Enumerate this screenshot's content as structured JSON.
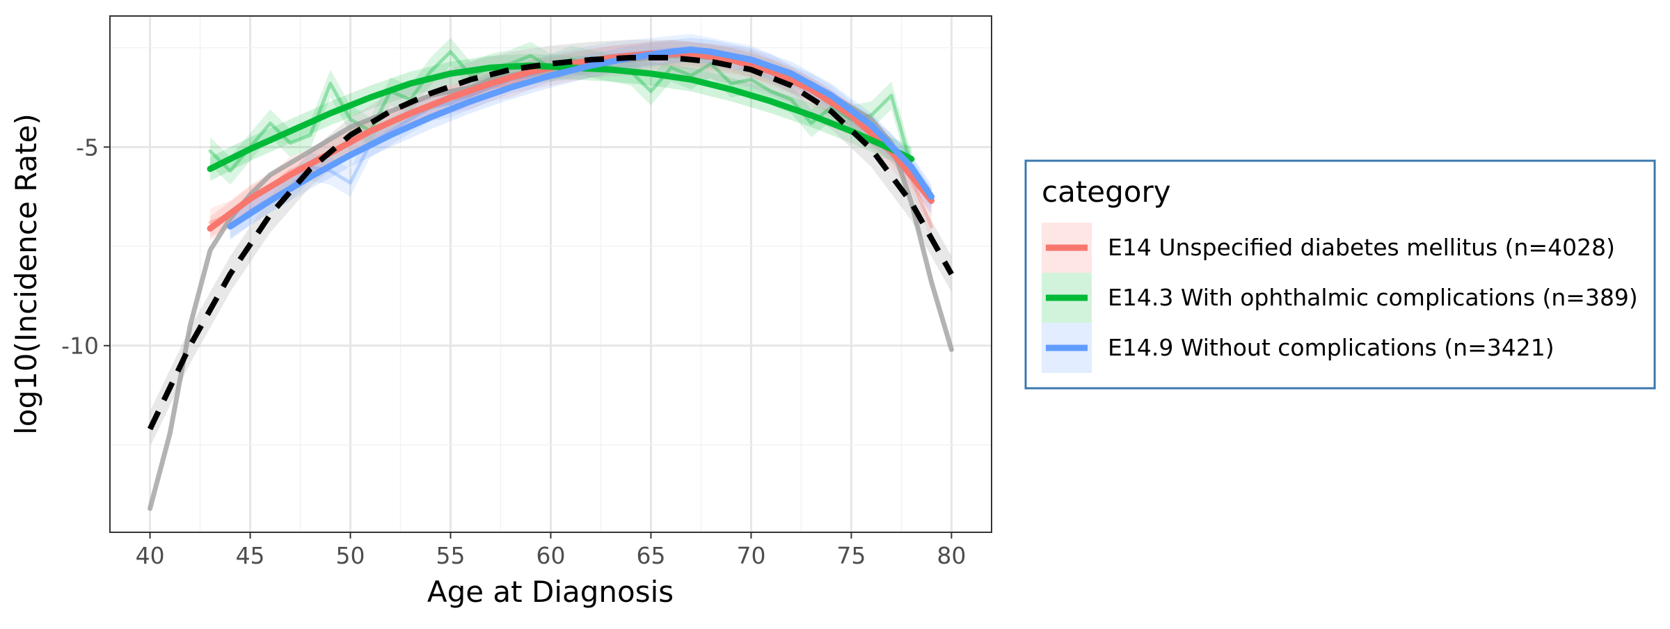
{
  "chart_data": {
    "type": "line",
    "title": "",
    "xlabel": "Age at Diagnosis",
    "ylabel": "log10(Incidence Rate)",
    "xlim": [
      38,
      82
    ],
    "ylim": [
      -14.7,
      -1.7
    ],
    "x_ticks": [
      40,
      45,
      50,
      55,
      60,
      65,
      70,
      75,
      80
    ],
    "y_ticks": [
      -5,
      -10
    ],
    "grid": true,
    "legend": {
      "title": "category",
      "position": "right",
      "entries": [
        {
          "label": "E14 Unspecified diabetes mellitus (n=4028)",
          "color": "#F8766D"
        },
        {
          "label": "E14.3 With ophthalmic complications (n=389)",
          "color": "#00BA38"
        },
        {
          "label": "E14.9 Without complications (n=3421)",
          "color": "#619CFF"
        }
      ]
    },
    "series": [
      {
        "name": "E14 Unspecified diabetes mellitus (n=4028)",
        "role": "observed",
        "color": "#F8766D",
        "x": [
          43,
          44,
          45,
          46,
          47,
          48,
          49,
          50,
          51,
          52,
          53,
          54,
          55,
          56,
          57,
          58,
          59,
          60,
          61,
          62,
          63,
          64,
          65,
          66,
          67,
          68,
          69,
          70,
          71,
          72,
          73,
          74,
          75,
          76,
          77,
          78,
          79
        ],
        "y": [
          -6.9,
          -6.7,
          -6.3,
          -6.0,
          -5.6,
          -5.4,
          -5.1,
          -4.9,
          -4.6,
          -4.4,
          -4.2,
          -4.0,
          -3.8,
          -3.7,
          -3.5,
          -3.4,
          -3.2,
          -3.1,
          -3.0,
          -2.9,
          -2.8,
          -2.75,
          -2.7,
          -2.65,
          -2.7,
          -2.75,
          -2.8,
          -2.9,
          -3.1,
          -3.3,
          -3.6,
          -3.9,
          -4.3,
          -4.7,
          -5.2,
          -5.8,
          -7.0
        ]
      },
      {
        "name": "E14 Unspecified diabetes mellitus (n=4028)",
        "role": "fitted",
        "color": "#F8766D",
        "x": [
          43,
          45,
          47,
          49,
          51,
          53,
          55,
          57,
          59,
          61,
          63,
          65,
          67,
          69,
          71,
          73,
          75,
          77,
          79
        ],
        "y": [
          -7.05,
          -6.3,
          -5.7,
          -5.15,
          -4.6,
          -4.15,
          -3.75,
          -3.4,
          -3.1,
          -2.9,
          -2.75,
          -2.65,
          -2.65,
          -2.8,
          -3.1,
          -3.55,
          -4.2,
          -5.1,
          -6.35
        ]
      },
      {
        "name": "E14.3 With ophthalmic complications (n=389)",
        "role": "observed",
        "color": "#00BA38",
        "x": [
          43,
          44,
          45,
          46,
          47,
          48,
          49,
          50,
          51,
          52,
          53,
          54,
          55,
          56,
          57,
          58,
          59,
          60,
          61,
          62,
          63,
          64,
          65,
          66,
          67,
          68,
          69,
          70,
          71,
          72,
          73,
          74,
          75,
          76,
          77,
          78
        ],
        "y": [
          -5.1,
          -5.6,
          -5.0,
          -4.4,
          -4.9,
          -4.7,
          -3.4,
          -4.3,
          -4.6,
          -3.6,
          -3.8,
          -3.1,
          -2.6,
          -3.2,
          -3.0,
          -2.9,
          -2.7,
          -3.0,
          -2.8,
          -2.9,
          -3.0,
          -3.1,
          -3.6,
          -3.0,
          -3.2,
          -2.9,
          -3.4,
          -3.3,
          -3.6,
          -3.8,
          -4.4,
          -4.0,
          -4.3,
          -4.2,
          -3.7,
          -5.5
        ]
      },
      {
        "name": "E14.3 With ophthalmic complications (n=389)",
        "role": "fitted",
        "color": "#00BA38",
        "x": [
          43,
          45,
          47,
          49,
          51,
          53,
          55,
          57,
          59,
          61,
          63,
          65,
          67,
          69,
          71,
          73,
          75,
          77,
          78
        ],
        "y": [
          -5.55,
          -5.05,
          -4.6,
          -4.15,
          -3.75,
          -3.4,
          -3.15,
          -3.0,
          -2.95,
          -3.0,
          -3.05,
          -3.15,
          -3.3,
          -3.55,
          -3.85,
          -4.2,
          -4.6,
          -5.05,
          -5.3
        ]
      },
      {
        "name": "E14.9 Without complications (n=3421)",
        "role": "observed",
        "color": "#619CFF",
        "x": [
          44,
          45,
          46,
          47,
          48,
          49,
          50,
          51,
          52,
          53,
          54,
          55,
          56,
          57,
          58,
          59,
          60,
          61,
          62,
          63,
          64,
          65,
          66,
          67,
          68,
          69,
          70,
          71,
          72,
          73,
          74,
          75,
          76,
          77,
          78,
          79
        ],
        "y": [
          -7.0,
          -6.6,
          -6.3,
          -6.0,
          -5.5,
          -5.6,
          -5.9,
          -4.9,
          -4.6,
          -4.3,
          -4.0,
          -3.9,
          -3.7,
          -3.5,
          -3.3,
          -3.2,
          -3.0,
          -2.9,
          -2.8,
          -2.7,
          -2.65,
          -2.6,
          -2.55,
          -2.5,
          -2.6,
          -2.7,
          -2.8,
          -3.0,
          -3.3,
          -3.5,
          -3.8,
          -4.2,
          -4.6,
          -5.0,
          -5.6,
          -6.4
        ]
      },
      {
        "name": "E14.9 Without complications (n=3421)",
        "role": "fitted",
        "color": "#619CFF",
        "x": [
          44,
          46,
          48,
          50,
          52,
          54,
          56,
          58,
          60,
          62,
          64,
          66,
          67,
          68,
          70,
          72,
          74,
          76,
          78,
          79
        ],
        "y": [
          -7.0,
          -6.35,
          -5.75,
          -5.2,
          -4.7,
          -4.25,
          -3.85,
          -3.5,
          -3.2,
          -2.95,
          -2.75,
          -2.6,
          -2.55,
          -2.6,
          -2.8,
          -3.15,
          -3.7,
          -4.45,
          -5.5,
          -6.25
        ]
      },
      {
        "name": "",
        "role": "pooled-observed",
        "color": "#999999",
        "x": [
          40,
          41,
          42,
          43,
          44,
          45,
          46,
          47,
          48,
          49,
          50,
          51,
          52,
          53,
          54,
          55,
          56,
          57,
          58,
          59,
          60,
          61,
          62,
          63,
          64,
          65,
          66,
          67,
          68,
          69,
          70,
          71,
          72,
          73,
          74,
          75,
          76,
          77,
          78,
          79,
          80
        ],
        "y": [
          -14.1,
          -12.2,
          -9.5,
          -7.6,
          -6.8,
          -6.2,
          -5.7,
          -5.4,
          -5.1,
          -4.8,
          -4.5,
          -4.3,
          -4.1,
          -3.9,
          -3.7,
          -3.6,
          -3.5,
          -3.3,
          -3.2,
          -3.1,
          -3.0,
          -2.95,
          -2.9,
          -2.85,
          -2.8,
          -2.75,
          -2.7,
          -2.7,
          -2.75,
          -2.8,
          -2.9,
          -3.0,
          -3.2,
          -3.4,
          -3.7,
          -4.0,
          -4.3,
          -4.9,
          -6.4,
          -8.4,
          -10.1
        ]
      },
      {
        "name": "",
        "role": "pooled-fitted",
        "color": "#000000",
        "x": [
          40,
          42,
          44,
          46,
          48,
          50,
          52,
          54,
          56,
          58,
          60,
          62,
          64,
          66,
          68,
          70,
          72,
          74,
          76,
          78,
          80
        ],
        "y": [
          -12.1,
          -10.0,
          -8.2,
          -6.7,
          -5.55,
          -4.7,
          -4.1,
          -3.65,
          -3.3,
          -3.05,
          -2.9,
          -2.8,
          -2.75,
          -2.75,
          -2.85,
          -3.05,
          -3.45,
          -4.1,
          -5.05,
          -6.4,
          -8.2
        ]
      }
    ]
  }
}
